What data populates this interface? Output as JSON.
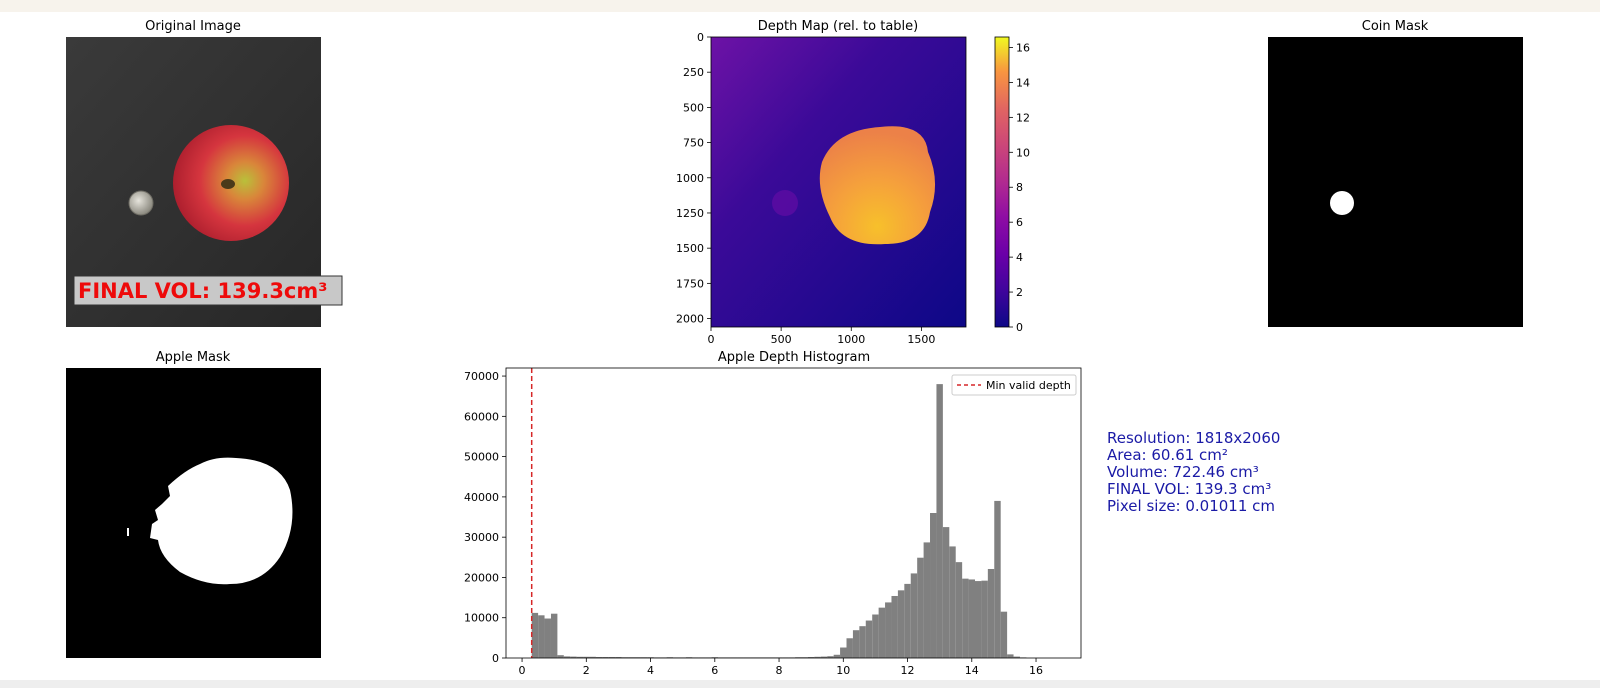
{
  "panels": {
    "original": {
      "title": "Original Image",
      "overlay_text": "FINAL VOL: 139.3cm³"
    },
    "depth": {
      "title": "Depth Map (rel. to table)"
    },
    "coin": {
      "title": "Coin Mask"
    },
    "apple": {
      "title": "Apple Mask"
    },
    "histogram": {
      "title": "Apple Depth Histogram"
    }
  },
  "info": {
    "lines": [
      "Resolution: 1818x2060",
      "Area: 60.61 cm²",
      "Volume: 722.46 cm³",
      "FINAL VOL: 139.3 cm³",
      "Pixel size: 0.01011 cm"
    ],
    "color": "#1a1aa6"
  },
  "chart_data": [
    {
      "type": "heatmap",
      "title": "Depth Map (rel. to table)",
      "x_ticks": [
        0,
        500,
        1000,
        1500
      ],
      "y_ticks": [
        0,
        250,
        500,
        750,
        1000,
        1250,
        1500,
        1750,
        2000
      ],
      "xlim": [
        0,
        1818
      ],
      "ylim": [
        2060,
        0
      ],
      "colorbar": {
        "colormap": "plasma",
        "range": [
          0,
          16.6
        ],
        "ticks": [
          0,
          2,
          4,
          6,
          8,
          10,
          12,
          14,
          16
        ]
      }
    },
    {
      "type": "bar",
      "title": "Apple Depth Histogram",
      "x_ticks": [
        0,
        2,
        4,
        6,
        8,
        10,
        12,
        14,
        16
      ],
      "y_ticks": [
        0,
        10000,
        20000,
        30000,
        40000,
        50000,
        60000,
        70000
      ],
      "xlim": [
        -0.5,
        17.4
      ],
      "ylim": [
        0,
        72000
      ],
      "bin_width": 0.2,
      "bar_color": "#808080",
      "bins": [
        [
          0.3,
          11200
        ],
        [
          0.5,
          10600
        ],
        [
          0.7,
          9800
        ],
        [
          0.9,
          11000
        ],
        [
          1.1,
          700
        ],
        [
          1.3,
          400
        ],
        [
          1.5,
          350
        ],
        [
          1.7,
          300
        ],
        [
          1.9,
          300
        ],
        [
          2.1,
          300
        ],
        [
          2.3,
          250
        ],
        [
          2.5,
          250
        ],
        [
          2.7,
          250
        ],
        [
          2.9,
          250
        ],
        [
          3.1,
          200
        ],
        [
          3.3,
          200
        ],
        [
          3.5,
          200
        ],
        [
          3.7,
          200
        ],
        [
          3.9,
          200
        ],
        [
          4.1,
          150
        ],
        [
          4.3,
          150
        ],
        [
          4.5,
          200
        ],
        [
          4.7,
          150
        ],
        [
          4.9,
          150
        ],
        [
          5.1,
          200
        ],
        [
          5.3,
          150
        ],
        [
          5.5,
          150
        ],
        [
          5.7,
          150
        ],
        [
          5.9,
          200
        ],
        [
          6.1,
          150
        ],
        [
          6.3,
          150
        ],
        [
          6.5,
          150
        ],
        [
          6.7,
          150
        ],
        [
          6.9,
          150
        ],
        [
          7.1,
          150
        ],
        [
          7.3,
          150
        ],
        [
          7.5,
          150
        ],
        [
          7.7,
          150
        ],
        [
          7.9,
          150
        ],
        [
          8.1,
          150
        ],
        [
          8.3,
          150
        ],
        [
          8.5,
          200
        ],
        [
          8.7,
          200
        ],
        [
          8.9,
          250
        ],
        [
          9.1,
          300
        ],
        [
          9.3,
          350
        ],
        [
          9.5,
          450
        ],
        [
          9.7,
          800
        ],
        [
          9.9,
          2600
        ],
        [
          10.1,
          4900
        ],
        [
          10.3,
          6900
        ],
        [
          10.5,
          7900
        ],
        [
          10.7,
          9300
        ],
        [
          10.9,
          10800
        ],
        [
          11.1,
          12500
        ],
        [
          11.3,
          13800
        ],
        [
          11.5,
          15400
        ],
        [
          11.7,
          16800
        ],
        [
          11.9,
          18400
        ],
        [
          12.1,
          21000
        ],
        [
          12.3,
          24900
        ],
        [
          12.5,
          28700
        ],
        [
          12.7,
          36000
        ],
        [
          12.9,
          68000
        ],
        [
          13.1,
          32500
        ],
        [
          13.3,
          27700
        ],
        [
          13.5,
          23800
        ],
        [
          13.7,
          19700
        ],
        [
          13.9,
          19500
        ],
        [
          14.1,
          19100
        ],
        [
          14.3,
          19200
        ],
        [
          14.5,
          22100
        ],
        [
          14.7,
          39000
        ],
        [
          14.9,
          11500
        ],
        [
          15.1,
          900
        ],
        [
          15.3,
          350
        ],
        [
          15.5,
          150
        ]
      ],
      "reference_line": {
        "x": 0.3,
        "color": "#d62728",
        "style": "dashed"
      },
      "legend": {
        "entries": [
          "Min valid depth"
        ],
        "placement": "upper right"
      }
    }
  ]
}
